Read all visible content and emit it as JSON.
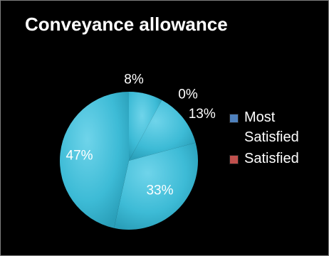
{
  "chart_data": {
    "type": "pie",
    "title": "Conveyance allowance",
    "slices": [
      {
        "label": "8%",
        "value": 8
      },
      {
        "label": "0%",
        "value": 0
      },
      {
        "label": "13%",
        "value": 13
      },
      {
        "label": "33%",
        "value": 33
      },
      {
        "label": "47%",
        "value": 47
      }
    ],
    "legend": [
      {
        "name": "Most Satisfied",
        "color": "#4f81bd"
      },
      {
        "name": "Satisfied",
        "color": "#c0504d"
      }
    ],
    "legend_position": "right",
    "slice_color": "#3dbbd6",
    "background": "#000000"
  }
}
